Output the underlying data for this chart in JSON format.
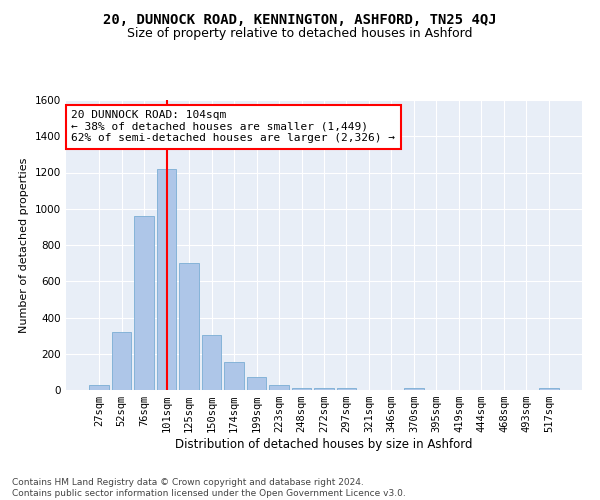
{
  "title": "20, DUNNOCK ROAD, KENNINGTON, ASHFORD, TN25 4QJ",
  "subtitle": "Size of property relative to detached houses in Ashford",
  "xlabel": "Distribution of detached houses by size in Ashford",
  "ylabel": "Number of detached properties",
  "bar_labels": [
    "27sqm",
    "52sqm",
    "76sqm",
    "101sqm",
    "125sqm",
    "150sqm",
    "174sqm",
    "199sqm",
    "223sqm",
    "248sqm",
    "272sqm",
    "297sqm",
    "321sqm",
    "346sqm",
    "370sqm",
    "395sqm",
    "419sqm",
    "444sqm",
    "468sqm",
    "493sqm",
    "517sqm"
  ],
  "bar_values": [
    30,
    320,
    960,
    1220,
    700,
    305,
    155,
    70,
    30,
    10,
    10,
    10,
    0,
    0,
    10,
    0,
    0,
    0,
    0,
    0,
    10
  ],
  "bar_color": "#aec6e8",
  "bar_edgecolor": "#7aadd4",
  "vline_x": 3.0,
  "vline_color": "red",
  "annotation_text": "20 DUNNOCK ROAD: 104sqm\n← 38% of detached houses are smaller (1,449)\n62% of semi-detached houses are larger (2,326) →",
  "annotation_box_color": "white",
  "annotation_box_edgecolor": "red",
  "ylim": [
    0,
    1600
  ],
  "yticks": [
    0,
    200,
    400,
    600,
    800,
    1000,
    1200,
    1400,
    1600
  ],
  "background_color": "#e8eef7",
  "footnote": "Contains HM Land Registry data © Crown copyright and database right 2024.\nContains public sector information licensed under the Open Government Licence v3.0.",
  "title_fontsize": 10,
  "subtitle_fontsize": 9,
  "xlabel_fontsize": 8.5,
  "ylabel_fontsize": 8,
  "tick_fontsize": 7.5,
  "annotation_fontsize": 8,
  "footnote_fontsize": 6.5
}
